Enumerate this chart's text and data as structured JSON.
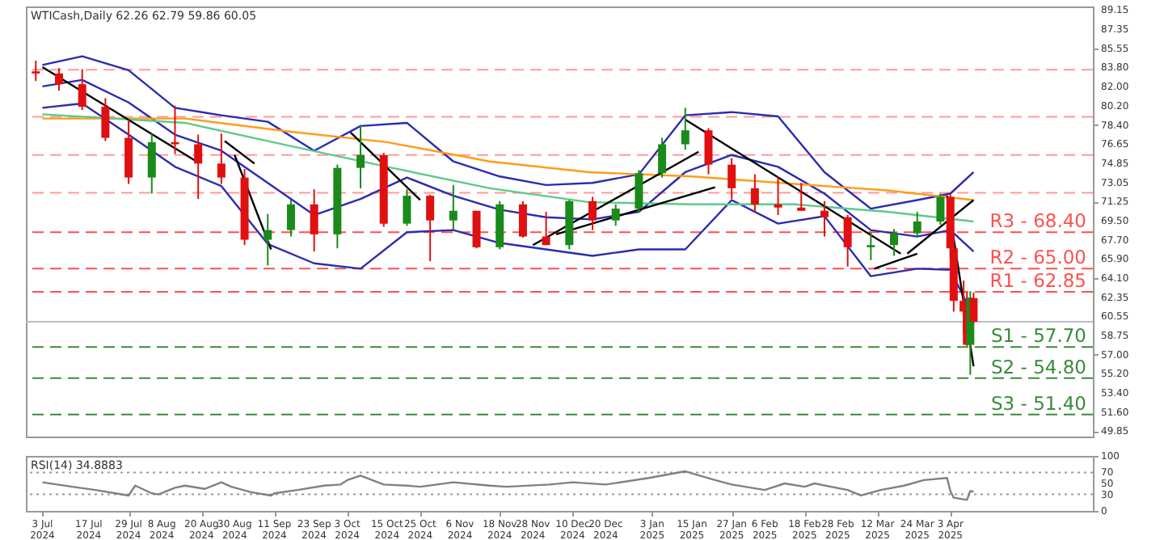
{
  "chart_data": [
    {
      "type": "candlestick",
      "title": "WTICash,Daily 62.26 62.79 59.86 60.05",
      "x": [
        "2024-07-01",
        "2024-07-08",
        "2024-07-15",
        "2024-07-22",
        "2024-07-29",
        "2024-08-05",
        "2024-08-12",
        "2024-08-19",
        "2024-08-26",
        "2024-09-02",
        "2024-09-09",
        "2024-09-16",
        "2024-09-23",
        "2024-09-30",
        "2024-10-07",
        "2024-10-14",
        "2024-10-21",
        "2024-10-28",
        "2024-11-04",
        "2024-11-11",
        "2024-11-18",
        "2024-11-25",
        "2024-12-02",
        "2024-12-09",
        "2024-12-16",
        "2024-12-23",
        "2024-12-30",
        "2025-01-06",
        "2025-01-13",
        "2025-01-20",
        "2025-01-27",
        "2025-02-03",
        "2025-02-10",
        "2025-02-17",
        "2025-02-24",
        "2025-03-03",
        "2025-03-10",
        "2025-03-17",
        "2025-03-24",
        "2025-03-31",
        "2025-04-03",
        "2025-04-04",
        "2025-04-07",
        "2025-04-08",
        "2025-04-09",
        "2025-04-10"
      ],
      "ohlc": [
        [
          83.4,
          84.4,
          82.5,
          83.2
        ],
        [
          83.2,
          83.7,
          81.6,
          82.2
        ],
        [
          82.2,
          83.6,
          79.8,
          80.1
        ],
        [
          80.1,
          80.9,
          76.9,
          77.2
        ],
        [
          77.2,
          78.9,
          72.9,
          73.5
        ],
        [
          73.5,
          77.6,
          72.0,
          76.8
        ],
        [
          76.8,
          80.2,
          75.7,
          76.6
        ],
        [
          76.6,
          77.5,
          71.5,
          74.8
        ],
        [
          74.8,
          77.6,
          72.9,
          73.5
        ],
        [
          73.5,
          74.3,
          67.2,
          67.7
        ],
        [
          67.7,
          70.1,
          65.3,
          68.6
        ],
        [
          68.6,
          71.4,
          68.0,
          71.0
        ],
        [
          71.0,
          72.4,
          66.6,
          68.2
        ],
        [
          68.2,
          74.7,
          66.9,
          74.4
        ],
        [
          74.4,
          78.4,
          72.5,
          75.6
        ],
        [
          75.6,
          75.8,
          68.9,
          69.2
        ],
        [
          69.2,
          72.4,
          69.0,
          71.8
        ],
        [
          71.8,
          71.9,
          65.7,
          69.5
        ],
        [
          69.5,
          72.8,
          68.6,
          70.4
        ],
        [
          70.4,
          70.4,
          66.9,
          67.0
        ],
        [
          67.0,
          71.3,
          66.8,
          71.0
        ],
        [
          71.0,
          71.3,
          67.9,
          68.0
        ],
        [
          68.0,
          70.3,
          67.2,
          67.2
        ],
        [
          67.2,
          71.4,
          66.8,
          71.3
        ],
        [
          71.3,
          71.7,
          68.6,
          69.5
        ],
        [
          69.5,
          71.0,
          69.0,
          70.6
        ],
        [
          70.6,
          74.2,
          70.3,
          73.9
        ],
        [
          73.9,
          77.2,
          73.5,
          76.6
        ],
        [
          76.6,
          80.0,
          76.1,
          77.9
        ],
        [
          77.9,
          78.1,
          73.8,
          74.7
        ],
        [
          74.7,
          75.3,
          71.5,
          72.5
        ],
        [
          72.5,
          73.8,
          70.3,
          71.0
        ],
        [
          71.0,
          73.6,
          70.0,
          70.7
        ],
        [
          70.7,
          73.0,
          70.4,
          70.4
        ],
        [
          70.4,
          71.3,
          68.0,
          69.8
        ],
        [
          69.8,
          70.0,
          65.2,
          67.0
        ],
        [
          67.0,
          68.4,
          65.8,
          67.2
        ],
        [
          67.2,
          68.7,
          66.2,
          68.3
        ],
        [
          68.3,
          70.3,
          68.0,
          69.4
        ],
        [
          69.4,
          72.0,
          69.1,
          71.7
        ],
        [
          71.7,
          71.9,
          66.0,
          66.9
        ],
        [
          66.9,
          67.4,
          61.0,
          62.0
        ],
        [
          62.0,
          63.9,
          58.9,
          61.0
        ],
        [
          61.0,
          62.8,
          57.8,
          57.9
        ],
        [
          57.9,
          62.9,
          55.1,
          62.3
        ],
        [
          62.26,
          62.79,
          59.86,
          60.05
        ]
      ],
      "colors": [
        "#e01010",
        "#e01010",
        "#e01010",
        "#e01010",
        "#e01010",
        "#1a8a1a",
        "#e01010",
        "#e01010",
        "#e01010",
        "#e01010",
        "#1a8a1a",
        "#1a8a1a",
        "#e01010",
        "#1a8a1a",
        "#1a8a1a",
        "#e01010",
        "#1a8a1a",
        "#e01010",
        "#1a8a1a",
        "#e01010",
        "#1a8a1a",
        "#e01010",
        "#e01010",
        "#1a8a1a",
        "#e01010",
        "#1a8a1a",
        "#1a8a1a",
        "#1a8a1a",
        "#1a8a1a",
        "#e01010",
        "#e01010",
        "#e01010",
        "#e01010",
        "#e01010",
        "#e01010",
        "#e01010",
        "#1a8a1a",
        "#1a8a1a",
        "#1a8a1a",
        "#1a8a1a",
        "#e01010",
        "#e01010",
        "#e01010",
        "#e01010",
        "#1a8a1a",
        "#e01010"
      ],
      "series": [
        {
          "type": "line",
          "color": "#2b2bb0",
          "x": [
            "2024-07-03",
            "2024-07-15",
            "2024-07-29",
            "2024-08-12",
            "2024-08-26",
            "2024-09-09",
            "2024-09-23",
            "2024-10-07",
            "2024-10-21",
            "2024-11-04",
            "2024-11-18",
            "2024-12-02",
            "2024-12-16",
            "2024-12-30",
            "2025-01-13",
            "2025-01-27",
            "2025-02-10",
            "2025-02-24",
            "2025-03-10",
            "2025-03-24",
            "2025-04-03",
            "2025-04-10"
          ],
          "values": [
            84.0,
            84.8,
            83.5,
            80.0,
            79.3,
            78.7,
            76.0,
            78.3,
            78.6,
            75.0,
            73.6,
            72.8,
            73.0,
            73.8,
            79.3,
            79.6,
            79.2,
            74.0,
            70.6,
            71.4,
            72.0,
            74.0
          ]
        },
        {
          "type": "line",
          "color": "#2b2bb0",
          "x": [
            "2024-07-03",
            "2024-07-15",
            "2024-07-29",
            "2024-08-12",
            "2024-08-26",
            "2024-09-09",
            "2024-09-23",
            "2024-10-07",
            "2024-10-21",
            "2024-11-04",
            "2024-11-18",
            "2024-12-02",
            "2024-12-16",
            "2024-12-30",
            "2025-01-13",
            "2025-01-27",
            "2025-02-10",
            "2025-02-24",
            "2025-03-10",
            "2025-03-24",
            "2025-04-03",
            "2025-04-10"
          ],
          "values": [
            82.0,
            82.6,
            80.5,
            77.5,
            76.0,
            73.0,
            70.0,
            71.5,
            73.5,
            71.8,
            70.5,
            69.8,
            69.6,
            70.3,
            74.0,
            75.6,
            74.5,
            72.0,
            68.6,
            68.0,
            68.6,
            66.6
          ]
        },
        {
          "type": "line",
          "color": "#2b2bb0",
          "x": [
            "2024-07-03",
            "2024-07-15",
            "2024-07-29",
            "2024-08-12",
            "2024-08-26",
            "2024-09-09",
            "2024-09-23",
            "2024-10-07",
            "2024-10-21",
            "2024-11-04",
            "2024-11-18",
            "2024-12-02",
            "2024-12-16",
            "2024-12-30",
            "2025-01-13",
            "2025-01-27",
            "2025-02-10",
            "2025-02-24",
            "2025-03-10",
            "2025-03-24",
            "2025-04-03",
            "2025-04-10"
          ],
          "values": [
            80.0,
            80.4,
            77.5,
            74.5,
            72.7,
            67.3,
            65.5,
            65.0,
            68.4,
            68.6,
            67.4,
            66.8,
            66.2,
            66.8,
            66.8,
            71.4,
            69.2,
            69.9,
            64.3,
            65.0,
            64.9,
            60.5
          ]
        },
        {
          "type": "line",
          "color": "#ff9c1a",
          "x": [
            "2024-07-03",
            "2024-08-15",
            "2024-09-15",
            "2024-10-15",
            "2024-11-15",
            "2024-12-15",
            "2025-01-15",
            "2025-02-15",
            "2025-03-15",
            "2025-04-10"
          ],
          "values": [
            79.0,
            79.0,
            77.8,
            76.8,
            75.0,
            74.0,
            73.6,
            72.9,
            72.3,
            71.4
          ]
        },
        {
          "type": "line",
          "color": "#5ec98a",
          "x": [
            "2024-07-03",
            "2024-08-15",
            "2024-09-15",
            "2024-10-15",
            "2024-11-15",
            "2024-12-15",
            "2025-01-15",
            "2025-02-15",
            "2025-03-15",
            "2025-04-10"
          ],
          "values": [
            79.4,
            78.6,
            76.5,
            74.5,
            72.5,
            71.2,
            71.0,
            71.0,
            70.3,
            69.4
          ]
        },
        {
          "type": "line",
          "color": "#000000",
          "x": [
            "2024-07-03",
            "2024-08-19"
          ],
          "values": [
            83.8,
            74.9
          ]
        },
        {
          "type": "line",
          "color": "#000000",
          "x": [
            "2024-08-27",
            "2024-09-05"
          ],
          "values": [
            76.9,
            74.8
          ]
        },
        {
          "type": "line",
          "color": "#000000",
          "x": [
            "2024-08-30",
            "2024-09-10"
          ],
          "values": [
            75.6,
            66.8
          ]
        },
        {
          "type": "line",
          "color": "#000000",
          "x": [
            "2024-10-04",
            "2024-10-25"
          ],
          "values": [
            77.7,
            71.4
          ]
        },
        {
          "type": "line",
          "color": "#000000",
          "x": [
            "2024-11-28",
            "2025-01-17"
          ],
          "values": [
            67.2,
            75.9
          ]
        },
        {
          "type": "line",
          "color": "#000000",
          "x": [
            "2024-12-05",
            "2025-01-22"
          ],
          "values": [
            68.2,
            72.6
          ]
        },
        {
          "type": "line",
          "color": "#000000",
          "x": [
            "2025-01-13",
            "2025-03-19"
          ],
          "values": [
            78.9,
            66.4
          ]
        },
        {
          "type": "line",
          "color": "#000000",
          "x": [
            "2025-03-11",
            "2025-03-24"
          ],
          "values": [
            65.0,
            66.4
          ]
        },
        {
          "type": "line",
          "color": "#000000",
          "x": [
            "2025-03-21",
            "2025-04-10"
          ],
          "values": [
            66.4,
            71.4
          ]
        },
        {
          "type": "line",
          "color": "#000000",
          "x": [
            "2025-04-02",
            "2025-04-10"
          ],
          "values": [
            71.8,
            55.9
          ]
        }
      ],
      "ref_lines": [
        {
          "axis": "y",
          "value": 83.56,
          "label": null,
          "color": "#ff9a9a",
          "line_style": "dashed"
        },
        {
          "axis": "y",
          "value": 79.16,
          "label": null,
          "color": "#ff9a9a",
          "line_style": "dashed"
        },
        {
          "axis": "y",
          "value": 75.6,
          "label": null,
          "color": "#ff9a9a",
          "line_style": "dashed"
        },
        {
          "axis": "y",
          "value": 72.08,
          "label": null,
          "color": "#ff9a9a",
          "line_style": "dashed"
        },
        {
          "axis": "y",
          "value": 68.4,
          "label": "R3 - 68.40",
          "color": "#ff5050",
          "line_style": "dashed"
        },
        {
          "axis": "y",
          "value": 65.0,
          "label": "R2 - 65.00",
          "color": "#ff5050",
          "line_style": "dashed"
        },
        {
          "axis": "y",
          "value": 62.85,
          "label": "R1 - 62.85",
          "color": "#ff5050",
          "line_style": "dashed"
        },
        {
          "axis": "y",
          "value": 60.05,
          "label": null,
          "color": "#b8bcc8",
          "line_style": "solid"
        },
        {
          "axis": "y",
          "value": 57.7,
          "label": "S1 - 57.70",
          "color": "#3a8a3a",
          "line_style": "dashed"
        },
        {
          "axis": "y",
          "value": 54.8,
          "label": "S2 - 54.80",
          "color": "#3a8a3a",
          "line_style": "dashed"
        },
        {
          "axis": "y",
          "value": 51.4,
          "label": "S3 - 51.40",
          "color": "#3a8a3a",
          "line_style": "dashed"
        }
      ],
      "xlim": [
        "2024-06-28",
        "2025-05-16"
      ],
      "ylim": [
        49.35,
        89.45
      ],
      "yticks": [
        89.15,
        87.35,
        85.55,
        {
          "value": 83.8,
          "label": "83.80"
        },
        {
          "value": 82,
          "label": "82.00"
        },
        {
          "value": 80.2,
          "label": "80.20"
        },
        {
          "value": 78.4,
          "label": "78.40"
        },
        76.65,
        74.85,
        73.05,
        71.25,
        {
          "value": 69.5,
          "label": "69.50"
        },
        {
          "value": 67.7,
          "label": "67.70"
        },
        {
          "value": 65.9,
          "label": "65.90"
        },
        {
          "value": 64.1,
          "label": "64.10"
        },
        62.35,
        60.55,
        58.75,
        {
          "value": 57,
          "label": "57.00"
        },
        {
          "value": 55.2,
          "label": "55.20"
        },
        {
          "value": 53.4,
          "label": "53.40"
        },
        {
          "value": 51.6,
          "label": "51.60"
        },
        49.85
      ],
      "tick_labels": "y"
    },
    {
      "type": "line",
      "title": "RSI(14) 34.8883",
      "series": [
        {
          "color": "#808080",
          "x": [
            "2024-07-03",
            "2024-07-12",
            "2024-07-19",
            "2024-07-29",
            "2024-07-31",
            "2024-08-05",
            "2024-08-07",
            "2024-08-12",
            "2024-08-15",
            "2024-08-21",
            "2024-08-26",
            "2024-08-29",
            "2024-09-04",
            "2024-09-10",
            "2024-09-11",
            "2024-09-18",
            "2024-09-26",
            "2024-10-01",
            "2024-10-03",
            "2024-10-07",
            "2024-10-14",
            "2024-10-21",
            "2024-10-25",
            "2024-11-04",
            "2024-11-15",
            "2024-11-20",
            "2024-12-03",
            "2024-12-10",
            "2024-12-20",
            "2025-01-02",
            "2025-01-13",
            "2025-01-22",
            "2025-01-27",
            "2025-02-06",
            "2025-02-12",
            "2025-02-18",
            "2025-02-21",
            "2025-03-03",
            "2025-03-07",
            "2025-03-13",
            "2025-03-20",
            "2025-03-26",
            "2025-04-02",
            "2025-04-03",
            "2025-04-04",
            "2025-04-08",
            "2025-04-09",
            "2025-04-10"
          ],
          "values": [
            52,
            44,
            38,
            28,
            46,
            32,
            30,
            42,
            46,
            40,
            52,
            44,
            34,
            28,
            32,
            38,
            46,
            48,
            56,
            64,
            48,
            46,
            44,
            52,
            46,
            44,
            48,
            52,
            48,
            60,
            72,
            56,
            48,
            38,
            50,
            44,
            50,
            38,
            28,
            38,
            46,
            56,
            60,
            36,
            24,
            20,
            36,
            35
          ]
        }
      ],
      "ref_lines": [
        {
          "axis": "y",
          "value": 70,
          "label": null,
          "color": "#9a9a9a",
          "line_style": "dotted"
        },
        {
          "axis": "y",
          "value": 30,
          "label": null,
          "color": "#9a9a9a",
          "line_style": "dotted"
        }
      ],
      "xlim": [
        "2024-06-28",
        "2025-05-16"
      ],
      "xticks": [
        {
          "value": "2024-07-03",
          "label": "3 Jul 2024"
        },
        {
          "value": "2024-07-17",
          "label": "17 Jul 2024"
        },
        {
          "value": "2024-07-29",
          "label": "29 Jul 2024"
        },
        {
          "value": "2024-08-08",
          "label": "8 Aug 2024"
        },
        {
          "value": "2024-08-20",
          "label": "20 Aug 2024"
        },
        {
          "value": "2024-08-30",
          "label": "30 Aug 2024"
        },
        {
          "value": "2024-09-11",
          "label": "11 Sep 2024"
        },
        {
          "value": "2024-09-23",
          "label": "23 Sep 2024"
        },
        {
          "value": "2024-10-03",
          "label": "3 Oct 2024"
        },
        {
          "value": "2024-10-15",
          "label": "15 Oct 2024"
        },
        {
          "value": "2024-10-25",
          "label": "25 Oct 2024"
        },
        {
          "value": "2024-11-06",
          "label": "6 Nov 2024"
        },
        {
          "value": "2024-11-18",
          "label": "18 Nov 2024"
        },
        {
          "value": "2024-11-28",
          "label": "28 Nov 2024"
        },
        {
          "value": "2024-12-10",
          "label": "10 Dec 2024"
        },
        {
          "value": "2024-12-20",
          "label": "20 Dec 2024"
        },
        {
          "value": "2025-01-03",
          "label": "3 Jan 2025"
        },
        {
          "value": "2025-01-15",
          "label": "15 Jan 2025"
        },
        {
          "value": "2025-01-27",
          "label": "27 Jan 2025"
        },
        {
          "value": "2025-02-06",
          "label": "6 Feb 2025"
        },
        {
          "value": "2025-02-18",
          "label": "18 Feb 2025"
        },
        {
          "value": "2025-02-28",
          "label": "28 Feb 2025"
        },
        {
          "value": "2025-03-12",
          "label": "12 Mar 2025"
        },
        {
          "value": "2025-03-24",
          "label": "24 Mar 2025"
        },
        {
          "value": "2025-04-03",
          "label": "3 Apr 2025"
        }
      ],
      "ylim": [
        0,
        100
      ],
      "yticks": [
        0,
        30,
        50,
        70,
        100
      ]
    }
  ]
}
